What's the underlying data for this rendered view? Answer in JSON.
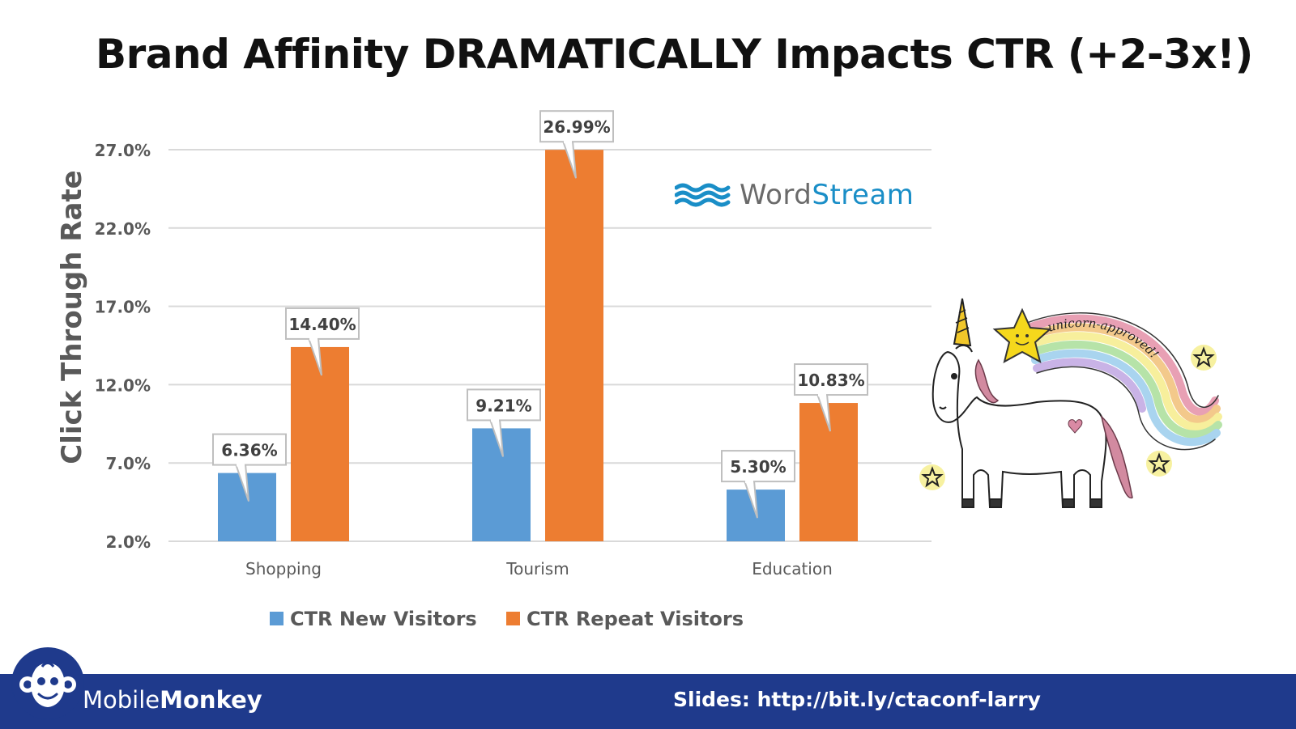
{
  "slide": {
    "title": "Brand Affinity DRAMATICALLY Impacts CTR (+2-3x!)"
  },
  "chart_data": {
    "type": "bar",
    "ylabel": "Click Through Rate",
    "xlabel": "",
    "ylim": [
      2.0,
      27.0
    ],
    "yticks": [
      2.0,
      7.0,
      12.0,
      17.0,
      22.0,
      27.0
    ],
    "ytick_labels": [
      "2.0%",
      "7.0%",
      "12.0%",
      "17.0%",
      "22.0%",
      "27.0%"
    ],
    "grid": true,
    "categories": [
      "Shopping",
      "Tourism",
      "Education"
    ],
    "series": [
      {
        "name": "CTR New Visitors",
        "color": "#5b9bd5",
        "values": [
          6.36,
          9.21,
          5.3
        ],
        "labels": [
          "6.36%",
          "9.21%",
          "5.30%"
        ]
      },
      {
        "name": "CTR Repeat Visitors",
        "color": "#ed7d31",
        "values": [
          14.4,
          26.99,
          10.83
        ],
        "labels": [
          "14.40%",
          "26.99%",
          "10.83%"
        ]
      }
    ],
    "legend_position": "bottom-left"
  },
  "wordstream_logo": {
    "word": "Word",
    "stream": "Stream",
    "word_color": "#6a6a6a",
    "stream_color": "#1a8ec7"
  },
  "unicorn_illustration": {
    "caption": "unicorn-approved!"
  },
  "footer": {
    "brand_light": "Mobile",
    "brand_bold": "Monkey",
    "slides_link": "Slides: http://bit.ly/ctaconf-larry",
    "bar_color": "#1f3a8c"
  }
}
